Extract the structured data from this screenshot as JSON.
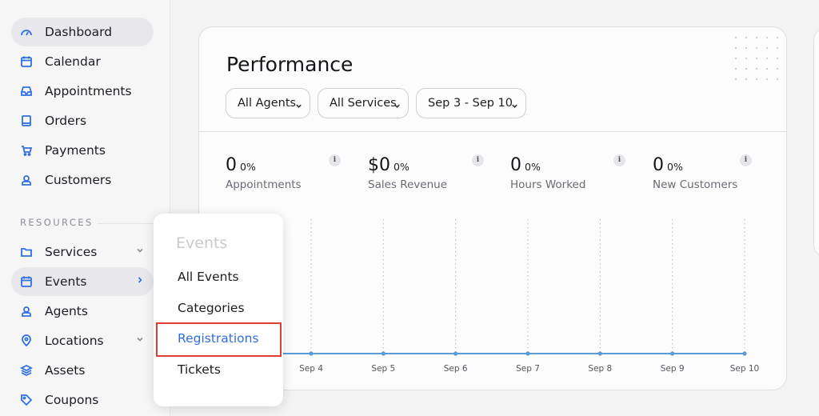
{
  "sidebar": {
    "items": [
      {
        "label": "Dashboard",
        "icon": "gauge-icon"
      },
      {
        "label": "Calendar",
        "icon": "calendar-icon"
      },
      {
        "label": "Appointments",
        "icon": "inbox-icon"
      },
      {
        "label": "Orders",
        "icon": "book-icon"
      },
      {
        "label": "Payments",
        "icon": "cart-icon"
      },
      {
        "label": "Customers",
        "icon": "user-icon"
      }
    ],
    "resources_label": "RESOURCES",
    "resources": [
      {
        "label": "Services",
        "icon": "folder-icon"
      },
      {
        "label": "Events",
        "icon": "calendar-icon"
      },
      {
        "label": "Agents",
        "icon": "user-icon"
      },
      {
        "label": "Locations",
        "icon": "location-pin-icon"
      },
      {
        "label": "Assets",
        "icon": "layers-icon"
      },
      {
        "label": "Coupons",
        "icon": "tag-icon"
      }
    ]
  },
  "card": {
    "title": "Performance",
    "filters": [
      "All Agents",
      "All Services",
      "Sep 3 - Sep 10"
    ],
    "stats": [
      {
        "value": "0",
        "pct": "0%",
        "label": "Appointments"
      },
      {
        "value": "$0",
        "pct": "0%",
        "label": "Sales Revenue"
      },
      {
        "value": "0",
        "pct": "0%",
        "label": "Hours Worked"
      },
      {
        "value": "0",
        "pct": "0%",
        "label": "New Customers"
      }
    ],
    "info_glyph": "i"
  },
  "chart_data": {
    "type": "line",
    "categories": [
      "Sep 4",
      "Sep 5",
      "Sep 6",
      "Sep 7",
      "Sep 8",
      "Sep 9",
      "Sep 10"
    ],
    "series": [
      {
        "values": [
          0,
          0,
          0,
          0,
          0,
          0,
          0
        ]
      }
    ],
    "color": "#5b9bd5",
    "grid": true
  },
  "flyout": {
    "title": "Events",
    "items": [
      "All Events",
      "Categories",
      "Registrations",
      "Tickets"
    ]
  },
  "colors": {
    "accent": "#2f6fe4",
    "highlight_border": "#de3c35"
  }
}
